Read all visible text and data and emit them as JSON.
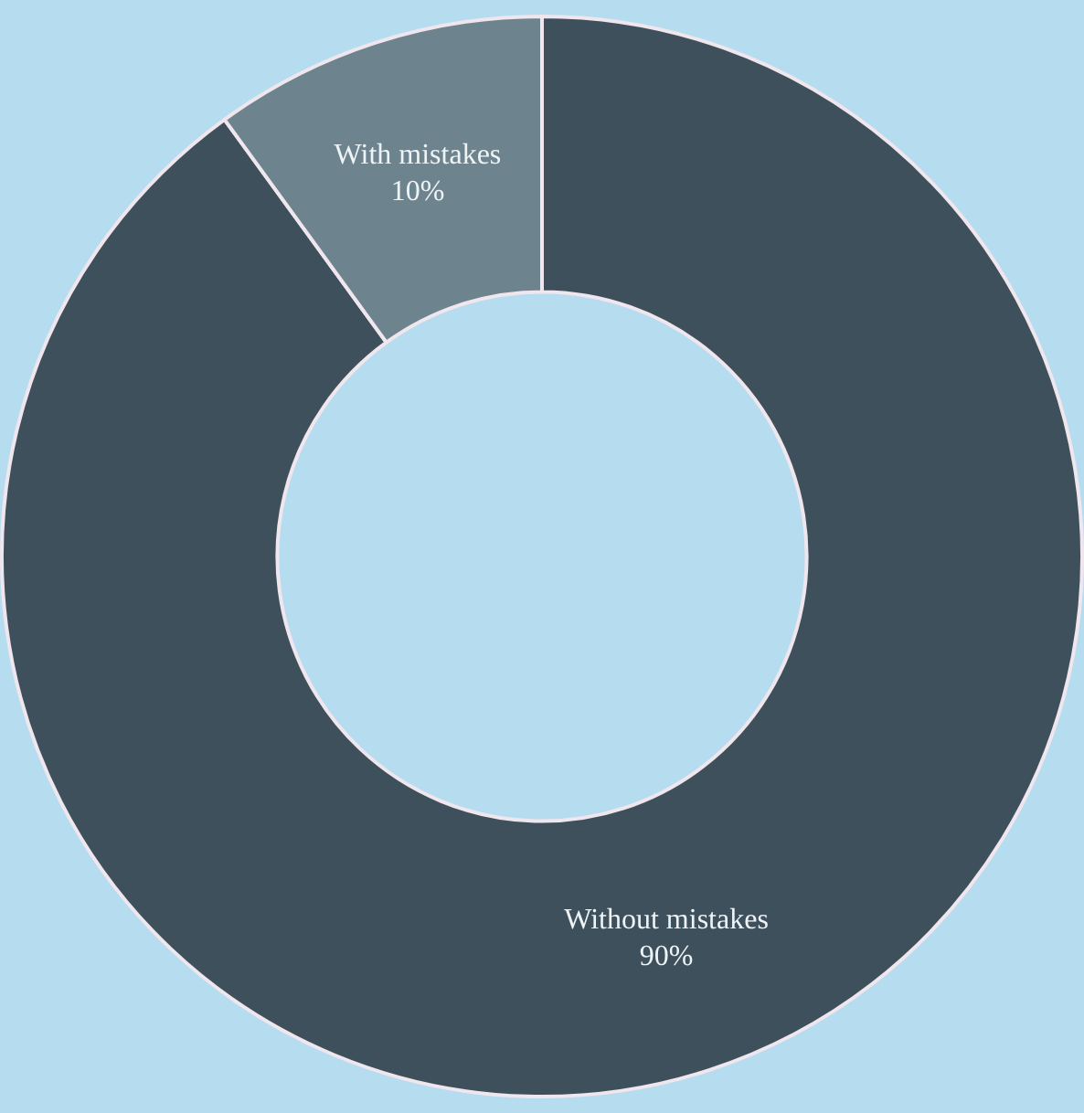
{
  "chart_data": {
    "type": "donut",
    "categories": [
      "Without mistakes",
      "With mistakes"
    ],
    "values": [
      90,
      10
    ],
    "value_labels": [
      "90%",
      "10%"
    ],
    "colors": [
      "#3e505b",
      "#6d848e"
    ],
    "legend": false
  }
}
